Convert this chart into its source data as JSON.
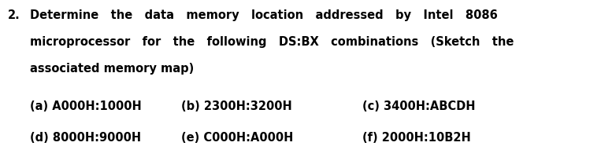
{
  "background_color": "#ffffff",
  "text_color": "#000000",
  "question_number": "2.",
  "line1": "Determine   the   data   memory   location   addressed   by   Intel   8086",
  "line2": "microprocessor   for   the   following   DS:BX   combinations   (Sketch   the",
  "line3": "associated memory map)",
  "items_row1": [
    "(a) A000H:1000H",
    "(b) 2300H:3200H",
    "(c) 3400H:ABCDH"
  ],
  "items_row2": [
    "(d) 8000H:9000H",
    "(e) C000H:A000H",
    "(f) 2000H:10B2H"
  ],
  "font_size_main": 10.5,
  "font_size_items": 10.5,
  "fig_width": 7.49,
  "fig_height": 2.14,
  "dpi": 100
}
